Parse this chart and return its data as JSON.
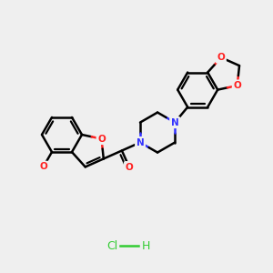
{
  "bg_color": "#efefef",
  "bond_color": "#000000",
  "nitrogen_color": "#3333ff",
  "oxygen_color": "#ff2020",
  "hcl_color": "#33cc33",
  "bond_width": 1.8,
  "fig_width": 3.0,
  "fig_height": 3.0,
  "dpi": 100,
  "hcl_text": "Cl",
  "h_text": "H",
  "o_methoxy_label": "O",
  "o_furan_label": "O",
  "o_carbonyl_label": "O",
  "o_dioxole1_label": "O",
  "o_dioxole2_label": "O",
  "n1_label": "N",
  "n4_label": "N"
}
